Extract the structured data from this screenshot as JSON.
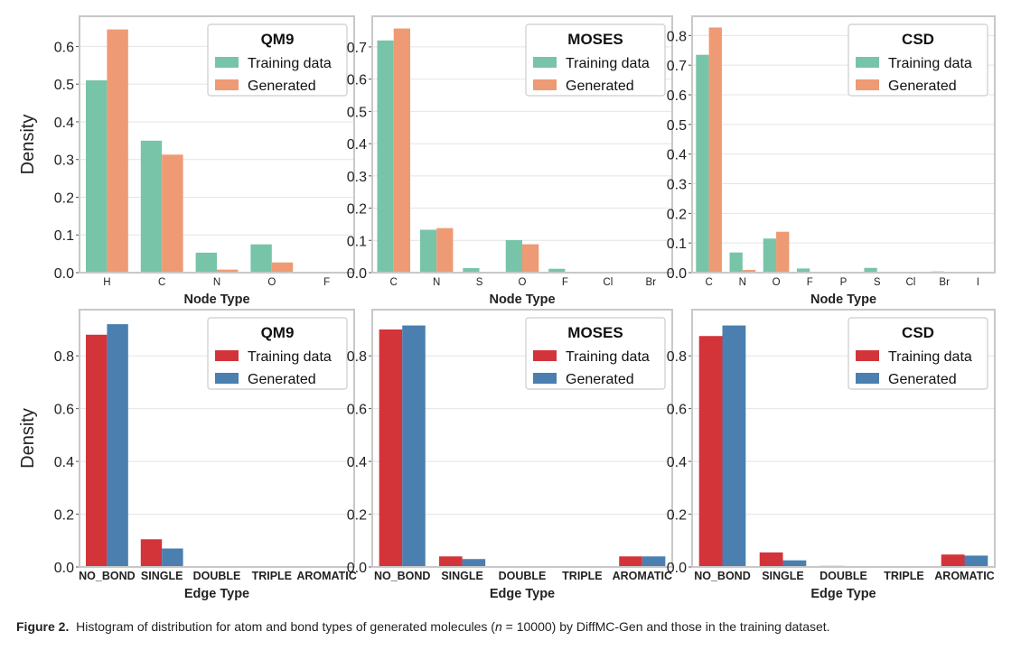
{
  "caption": {
    "label": "Figure 2.",
    "before": "Histogram of distribution for atom and bond types of generated molecules (",
    "n_symbol": "n",
    "middle": " = 10000) by DiffMC-Gen and those in the training dataset."
  },
  "colors": {
    "node_training": "#78c4a8",
    "node_generated": "#ee9a74",
    "edge_training": "#d3343a",
    "edge_generated": "#4a7fb0",
    "frame": "#c8c8c8",
    "grid": "#e4e4e4"
  },
  "chart_data": [
    {
      "type": "bar",
      "row": 0,
      "col": 0,
      "legend_title": "QM9",
      "xlabel": "Node Type",
      "ylabel": "Density",
      "categories": [
        "H",
        "C",
        "N",
        "O",
        "F"
      ],
      "ylim": [
        0,
        0.68
      ],
      "yticks": [
        0.0,
        0.1,
        0.2,
        0.3,
        0.4,
        0.5,
        0.6
      ],
      "tick_decimals": 1,
      "grid": true,
      "legend": "top-right",
      "palette": "node",
      "series": [
        {
          "name": "Training data",
          "values": [
            0.51,
            0.35,
            0.053,
            0.075,
            0.0
          ]
        },
        {
          "name": "Generated",
          "values": [
            0.645,
            0.313,
            0.008,
            0.027,
            0.0
          ]
        }
      ]
    },
    {
      "type": "bar",
      "row": 0,
      "col": 1,
      "legend_title": "MOSES",
      "xlabel": "Node Type",
      "ylabel": "",
      "categories": [
        "C",
        "N",
        "S",
        "O",
        "F",
        "Cl",
        "Br"
      ],
      "ylim": [
        0,
        0.795
      ],
      "yticks": [
        0.0,
        0.1,
        0.2,
        0.3,
        0.4,
        0.5,
        0.6,
        0.7
      ],
      "tick_decimals": 1,
      "grid": true,
      "legend": "top-right",
      "palette": "node",
      "series": [
        {
          "name": "Training data",
          "values": [
            0.72,
            0.133,
            0.014,
            0.101,
            0.012,
            0.002,
            0.001
          ]
        },
        {
          "name": "Generated",
          "values": [
            0.757,
            0.138,
            0.002,
            0.088,
            0.002,
            0.001,
            0.0
          ]
        }
      ]
    },
    {
      "type": "bar",
      "row": 0,
      "col": 2,
      "legend_title": "CSD",
      "xlabel": "Node Type",
      "ylabel": "",
      "categories": [
        "C",
        "N",
        "O",
        "F",
        "P",
        "S",
        "Cl",
        "Br",
        "I"
      ],
      "ylim": [
        0,
        0.865
      ],
      "yticks": [
        0.0,
        0.1,
        0.2,
        0.3,
        0.4,
        0.5,
        0.6,
        0.7,
        0.8
      ],
      "tick_decimals": 1,
      "grid": true,
      "legend": "top-right",
      "palette": "node",
      "series": [
        {
          "name": "Training data",
          "values": [
            0.735,
            0.068,
            0.115,
            0.014,
            0.0,
            0.016,
            0.001,
            0.004,
            0.0
          ]
        },
        {
          "name": "Generated",
          "values": [
            0.827,
            0.009,
            0.138,
            0.0,
            0.0,
            0.0,
            0.0,
            0.0,
            0.0
          ]
        }
      ]
    },
    {
      "type": "bar",
      "row": 1,
      "col": 0,
      "legend_title": "QM9",
      "xlabel": "Edge Type",
      "ylabel": "Density",
      "categories": [
        "NO_BOND",
        "SINGLE",
        "DOUBLE",
        "TRIPLE",
        "AROMATIC"
      ],
      "ylim": [
        0,
        0.975
      ],
      "yticks": [
        0.0,
        0.2,
        0.4,
        0.6,
        0.8
      ],
      "tick_decimals": 1,
      "grid": true,
      "legend": "top-right",
      "palette": "edge",
      "series": [
        {
          "name": "Training data",
          "values": [
            0.88,
            0.105,
            0.0,
            0.0,
            0.0
          ]
        },
        {
          "name": "Generated",
          "values": [
            0.92,
            0.07,
            0.0,
            0.0,
            0.0
          ]
        }
      ]
    },
    {
      "type": "bar",
      "row": 1,
      "col": 1,
      "legend_title": "MOSES",
      "xlabel": "Edge Type",
      "ylabel": "",
      "categories": [
        "NO_BOND",
        "SINGLE",
        "DOUBLE",
        "TRIPLE",
        "AROMATIC"
      ],
      "ylim": [
        0,
        0.975
      ],
      "yticks": [
        0.0,
        0.2,
        0.4,
        0.6,
        0.8
      ],
      "tick_decimals": 1,
      "grid": true,
      "legend": "top-right",
      "palette": "edge",
      "series": [
        {
          "name": "Training data",
          "values": [
            0.9,
            0.04,
            0.0,
            0.0,
            0.04
          ]
        },
        {
          "name": "Generated",
          "values": [
            0.915,
            0.03,
            0.0,
            0.0,
            0.04
          ]
        }
      ]
    },
    {
      "type": "bar",
      "row": 1,
      "col": 2,
      "legend_title": "CSD",
      "xlabel": "Edge Type",
      "ylabel": "",
      "categories": [
        "NO_BOND",
        "SINGLE",
        "DOUBLE",
        "TRIPLE",
        "AROMATIC"
      ],
      "ylim": [
        0,
        0.975
      ],
      "yticks": [
        0.0,
        0.2,
        0.4,
        0.6,
        0.8
      ],
      "tick_decimals": 1,
      "grid": true,
      "legend": "top-right",
      "palette": "edge",
      "series": [
        {
          "name": "Training data",
          "values": [
            0.875,
            0.055,
            0.004,
            0.0,
            0.047
          ]
        },
        {
          "name": "Generated",
          "values": [
            0.915,
            0.025,
            0.001,
            0.0,
            0.043
          ]
        }
      ]
    }
  ]
}
